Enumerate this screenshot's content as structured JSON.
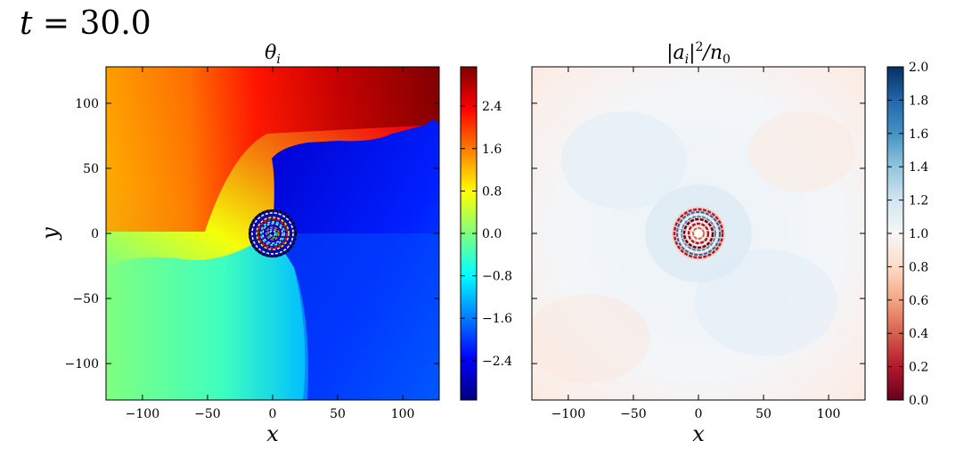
{
  "figure": {
    "time_label_var": "t",
    "time_label_eq": " = 30.0"
  },
  "chart_data": [
    {
      "type": "heatmap",
      "title_base": "θ",
      "title_sub": "i",
      "xlabel": "x",
      "ylabel": "y",
      "xlim": [
        -128,
        128
      ],
      "ylim": [
        -128,
        128
      ],
      "xticks": [
        -100,
        -50,
        0,
        50,
        100
      ],
      "yticks": [
        -100,
        -50,
        0,
        50,
        100
      ],
      "xtick_labels": [
        "−100",
        "−50",
        "0",
        "50",
        "100"
      ],
      "ytick_labels": [
        "−100",
        "−50",
        "0",
        "50",
        "100"
      ],
      "colorbar": {
        "colormap": "jet",
        "range": [
          -3.14159,
          3.14159
        ],
        "ticks": [
          -2.4,
          -1.6,
          -0.8,
          0.0,
          0.8,
          1.6,
          2.4
        ],
        "tick_labels": [
          "−2.4",
          "−1.6",
          "−0.8",
          "0.0",
          "0.8",
          "1.6",
          "2.4"
        ]
      },
      "features": {
        "vortex_center": [
          0,
          0
        ],
        "vortex_core_radius": 18,
        "phase_branch_cut": "ragged discontinuity from vortex toward right edge near y≈70–85"
      }
    },
    {
      "type": "heatmap",
      "title_base": "|a",
      "title_sub": "i",
      "title_rest": "|",
      "title_sup": "2",
      "title_tail": "/n",
      "title_sub2": "0",
      "xlabel": "x",
      "xlim": [
        -128,
        128
      ],
      "ylim": [
        -128,
        128
      ],
      "xticks": [
        -100,
        -50,
        0,
        50,
        100
      ],
      "yticks": [
        -100,
        -50,
        0,
        50,
        100
      ],
      "xtick_labels": [
        "−100",
        "−50",
        "0",
        "50",
        "100"
      ],
      "colorbar": {
        "colormap": "RdBu",
        "range": [
          0.0,
          2.0
        ],
        "ticks": [
          0.0,
          0.2,
          0.4,
          0.6,
          0.8,
          1.0,
          1.2,
          1.4,
          1.6,
          1.8,
          2.0
        ],
        "tick_labels": [
          "0.0",
          "0.2",
          "0.4",
          "0.6",
          "0.8",
          "1.0",
          "1.2",
          "1.4",
          "1.6",
          "1.8",
          "2.0"
        ]
      },
      "features": {
        "background_level": 1.0,
        "vortex_center": [
          0,
          0
        ],
        "core_density": 0.0
      }
    }
  ],
  "colors": {
    "jet": [
      "#00007f",
      "#0000ff",
      "#007fff",
      "#00ffff",
      "#7fff7f",
      "#ffff00",
      "#ff7f00",
      "#ff0000",
      "#7f0000"
    ],
    "rdbu": [
      "#67001f",
      "#b2182b",
      "#d6604d",
      "#f4a582",
      "#fddbc7",
      "#f7f7f7",
      "#d1e5f0",
      "#92c5de",
      "#4393c3",
      "#2166ac",
      "#053061"
    ]
  }
}
